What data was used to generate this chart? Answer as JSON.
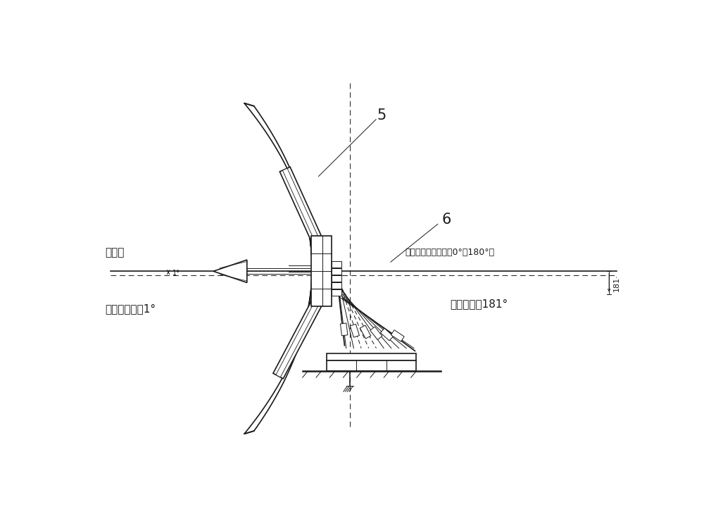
{
  "bg_color": "#ffffff",
  "line_color": "#1a1a1a",
  "text_shuipingxian": "水平线",
  "text_shuipingxian2": "水平线（假设俧仰觑0°戜180°）",
  "text_elev_neg1": "天线俧仰觑－1°",
  "text_elev_181": "天线俧仰觑181°",
  "label5": "5",
  "label6": "6",
  "label_181": "181·"
}
